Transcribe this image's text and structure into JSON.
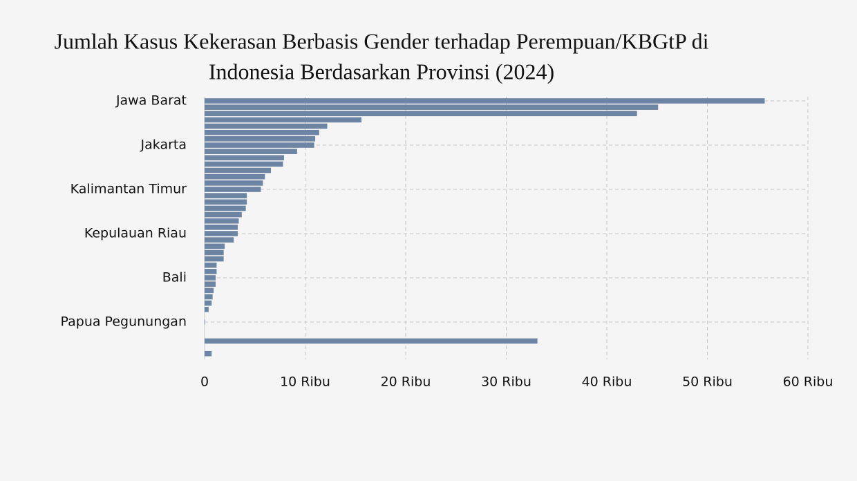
{
  "chart_data": {
    "type": "bar",
    "orientation": "horizontal",
    "title": [
      "Jumlah Kasus Kekerasan Berbasis Gender terhadap Perempuan/KBGtP di",
      "Indonesia Berdasarkan Provinsi (2024)"
    ],
    "categories": [
      "Jawa Barat",
      null,
      null,
      null,
      null,
      null,
      null,
      "Jakarta",
      null,
      null,
      null,
      null,
      null,
      null,
      "Kalimantan Timur",
      null,
      null,
      null,
      null,
      null,
      null,
      "Kepulauan Riau",
      null,
      null,
      null,
      null,
      null,
      null,
      "Bali",
      null,
      null,
      null,
      null,
      null,
      null,
      "Papua Pegunungan",
      null,
      null,
      null,
      null,
      null
    ],
    "values": [
      55700,
      45100,
      43000,
      15600,
      12200,
      11400,
      11000,
      10900,
      9200,
      7900,
      7800,
      6600,
      6000,
      5800,
      5600,
      4200,
      4200,
      4100,
      3700,
      3400,
      3300,
      3300,
      2900,
      2000,
      1900,
      1900,
      1200,
      1200,
      1100,
      1100,
      900,
      800,
      700,
      400,
      0,
      50,
      0,
      0,
      33100,
      0,
      700
    ],
    "color": "#6e84a3",
    "xlim": [
      0,
      60000
    ],
    "xticks": [
      0,
      {
        "value": 10000,
        "label": "10 Ribu"
      },
      {
        "value": 20000,
        "label": "20 Ribu"
      },
      {
        "value": 30000,
        "label": "30 Ribu"
      },
      {
        "value": 40000,
        "label": "40 Ribu"
      },
      {
        "value": 50000,
        "label": "50 Ribu"
      },
      {
        "value": 60000,
        "label": "60 Ribu"
      }
    ],
    "grid": true
  }
}
